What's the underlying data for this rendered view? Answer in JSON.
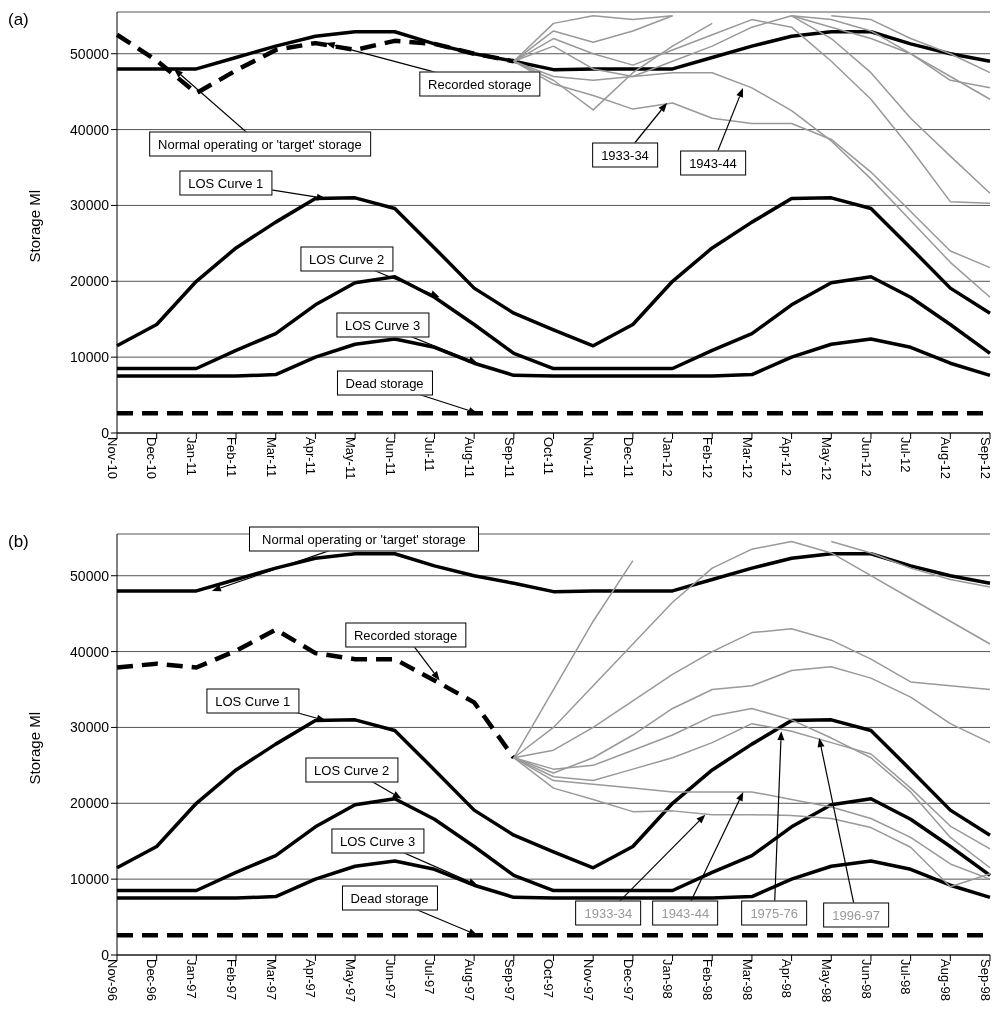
{
  "chart_data": [
    {
      "type": "line",
      "title": "(a)",
      "ylabel": "Storage Ml",
      "categories": [
        "Nov-10",
        "Dec-10",
        "Jan-11",
        "Feb-11",
        "Mar-11",
        "Apr-11",
        "May-11",
        "Jun-11",
        "Jul-11",
        "Aug-11",
        "Sep-11",
        "Oct-11",
        "Nov-11",
        "Dec-11",
        "Jan-12",
        "Feb-12",
        "Mar-12",
        "Apr-12",
        "May-12",
        "Jun-12",
        "Jul-12",
        "Aug-12",
        "Sep-12"
      ],
      "ylim": [
        0,
        55500
      ],
      "yticks": [
        0,
        10000,
        20000,
        30000,
        40000,
        50000
      ],
      "grid": "y",
      "legend": false,
      "marker": "none",
      "series": [
        {
          "name": "Normal operating or 'target' storage",
          "color": "#000000",
          "values": [
            48000,
            48000,
            48000,
            49500,
            51000,
            52300,
            52900,
            52900,
            51300,
            50000,
            49000,
            47900,
            48000,
            48000,
            48000,
            49500,
            51000,
            52300,
            52900,
            52900,
            51300,
            50000,
            49000
          ]
        },
        {
          "name": "Recorded storage",
          "color": "#000000",
          "line_style": "dashed",
          "values": [
            52500,
            49100,
            44800,
            47800,
            50500,
            51400,
            50500,
            51700,
            51300,
            50000,
            49000,
            null,
            null,
            null,
            null,
            null,
            null,
            null,
            null,
            null,
            null,
            null,
            null
          ]
        },
        {
          "name": "LOS Curve 1",
          "color": "#000000",
          "values": [
            11500,
            14300,
            20000,
            24400,
            27800,
            30900,
            31000,
            29600,
            24400,
            19100,
            15800,
            13600,
            11500,
            14300,
            20000,
            24400,
            27800,
            30900,
            31000,
            29600,
            24400,
            19100,
            15800
          ]
        },
        {
          "name": "LOS Curve 2",
          "color": "#000000",
          "values": [
            8500,
            8500,
            8500,
            10900,
            13100,
            16900,
            19800,
            20600,
            17900,
            14300,
            10500,
            8500,
            8500,
            8500,
            8500,
            10900,
            13100,
            16900,
            19800,
            20600,
            17900,
            14300,
            10500
          ]
        },
        {
          "name": "LOS Curve 3",
          "color": "#000000",
          "values": [
            7500,
            7500,
            7500,
            7500,
            7700,
            10000,
            11700,
            12400,
            11300,
            9200,
            7600,
            7500,
            7500,
            7500,
            7500,
            7500,
            7700,
            10000,
            11700,
            12400,
            11300,
            9200,
            7600
          ]
        },
        {
          "name": "Dead storage",
          "color": "#000000",
          "line_style": "dashed",
          "values": [
            2600,
            2600,
            2600,
            2600,
            2600,
            2600,
            2600,
            2600,
            2600,
            2600,
            2600,
            2600,
            2600,
            2600,
            2600,
            2600,
            2600,
            2600,
            2600,
            2600,
            2600,
            2600,
            2600
          ]
        },
        {
          "color": "#999999",
          "values": [
            null,
            null,
            null,
            null,
            null,
            null,
            null,
            null,
            null,
            null,
            49000,
            46000,
            44500,
            42700,
            43500,
            41500,
            40800,
            40800,
            38700,
            34400,
            29200,
            24000,
            21800
          ]
        },
        {
          "color": "#999999",
          "values": [
            null,
            null,
            null,
            null,
            null,
            null,
            null,
            null,
            null,
            null,
            49000,
            47000,
            46500,
            47000,
            47500,
            47500,
            45500,
            42500,
            38500,
            33500,
            28000,
            22500,
            17900
          ]
        },
        {
          "color": "#999999",
          "values": [
            null,
            null,
            null,
            null,
            null,
            null,
            null,
            null,
            null,
            null,
            49000,
            52000,
            50000,
            48500,
            50500,
            52500,
            54500,
            53500,
            49000,
            44000,
            37500,
            30500,
            30300
          ]
        },
        {
          "color": "#999999",
          "values": [
            null,
            null,
            null,
            null,
            null,
            null,
            null,
            null,
            null,
            null,
            49000,
            53000,
            51500,
            53000,
            55000,
            null,
            null,
            55000,
            52000,
            47500,
            41500,
            36500,
            31600
          ]
        },
        {
          "color": "#999999",
          "values": [
            null,
            null,
            null,
            null,
            null,
            null,
            null,
            null,
            null,
            null,
            49000,
            54000,
            55000,
            54500,
            55000,
            null,
            null,
            null,
            55000,
            54500,
            52000,
            50000,
            47500
          ]
        },
        {
          "color": "#999999",
          "values": [
            null,
            null,
            null,
            null,
            null,
            null,
            null,
            null,
            null,
            null,
            49000,
            51000,
            48000,
            47000,
            49000,
            51000,
            53500,
            55000,
            54500,
            53000,
            50000,
            46500,
            45500
          ]
        },
        {
          "color": "#999999",
          "values": [
            null,
            null,
            null,
            null,
            null,
            null,
            null,
            null,
            null,
            null,
            49000,
            46500,
            42600,
            47500,
            51000,
            54000,
            null,
            55000,
            53500,
            52000,
            50000,
            47000,
            44000
          ]
        }
      ],
      "annotations": [
        "1933-34",
        "1943-44"
      ]
    },
    {
      "type": "line",
      "title": "(b)",
      "ylabel": "Storage Ml",
      "categories": [
        "Nov-96",
        "Dec-96",
        "Jan-97",
        "Feb-97",
        "Mar-97",
        "Apr-97",
        "May-97",
        "Jun-97",
        "Jul-97",
        "Aug-97",
        "Sep-97",
        "Oct-97",
        "Nov-97",
        "Dec-97",
        "Jan-98",
        "Feb-98",
        "Mar-98",
        "Apr-98",
        "May-98",
        "Jun-98",
        "Jul-98",
        "Aug-98",
        "Sep-98"
      ],
      "ylim": [
        0,
        55500
      ],
      "yticks": [
        0,
        10000,
        20000,
        30000,
        40000,
        50000
      ],
      "grid": "y",
      "legend": false,
      "marker": "none",
      "series": [
        {
          "name": "Normal operating or 'target' storage",
          "color": "#000000",
          "values": [
            48000,
            48000,
            48000,
            49500,
            51000,
            52300,
            52900,
            52900,
            51300,
            50000,
            49000,
            47900,
            48000,
            48000,
            48000,
            49500,
            51000,
            52300,
            52900,
            52900,
            51300,
            50000,
            49000
          ]
        },
        {
          "name": "Recorded storage",
          "color": "#000000",
          "line_style": "dashed",
          "values": [
            37900,
            38400,
            37900,
            40100,
            42900,
            39800,
            39000,
            39000,
            36200,
            33300,
            26000,
            null,
            null,
            null,
            null,
            null,
            null,
            null,
            null,
            null,
            null,
            null,
            null
          ]
        },
        {
          "name": "LOS Curve 1",
          "color": "#000000",
          "values": [
            11500,
            14300,
            20000,
            24400,
            27800,
            30900,
            31000,
            29600,
            24400,
            19100,
            15800,
            13600,
            11500,
            14300,
            20000,
            24400,
            27800,
            30900,
            31000,
            29600,
            24400,
            19100,
            15800
          ]
        },
        {
          "name": "LOS Curve 2",
          "color": "#000000",
          "values": [
            8500,
            8500,
            8500,
            10900,
            13100,
            16900,
            19800,
            20600,
            17900,
            14300,
            10500,
            8500,
            8500,
            8500,
            8500,
            10900,
            13100,
            16900,
            19800,
            20600,
            17900,
            14300,
            10500
          ]
        },
        {
          "name": "LOS Curve 3",
          "color": "#000000",
          "values": [
            7500,
            7500,
            7500,
            7500,
            7700,
            10000,
            11700,
            12400,
            11300,
            9200,
            7600,
            7500,
            7500,
            7500,
            7500,
            7500,
            7700,
            10000,
            11700,
            12400,
            11300,
            9200,
            7600
          ]
        },
        {
          "name": "Dead storage",
          "color": "#000000",
          "line_style": "dashed",
          "values": [
            2600,
            2600,
            2600,
            2600,
            2600,
            2600,
            2600,
            2600,
            2600,
            2600,
            2600,
            2600,
            2600,
            2600,
            2600,
            2600,
            2600,
            2600,
            2600,
            2600,
            2600,
            2600,
            2600
          ]
        },
        {
          "name": "1933-34",
          "color": "#999999",
          "values": [
            null,
            null,
            null,
            null,
            null,
            null,
            null,
            null,
            null,
            null,
            26000,
            22000,
            20500,
            18900,
            19000,
            18500,
            18500,
            18400,
            18000,
            16800,
            14200,
            9000,
            10700
          ]
        },
        {
          "name": "1943-44",
          "color": "#999999",
          "values": [
            null,
            null,
            null,
            null,
            null,
            null,
            null,
            null,
            null,
            null,
            26000,
            23000,
            22500,
            22000,
            21500,
            21500,
            21500,
            20500,
            19500,
            18000,
            15500,
            12000,
            10000
          ]
        },
        {
          "name": "1975-76",
          "color": "#999999",
          "values": [
            null,
            null,
            null,
            null,
            null,
            null,
            null,
            null,
            null,
            null,
            26000,
            23500,
            23000,
            24500,
            26000,
            28000,
            30500,
            29500,
            28000,
            26500,
            22000,
            17000,
            14000
          ]
        },
        {
          "name": "1996-97",
          "color": "#999999",
          "values": [
            null,
            null,
            null,
            null,
            null,
            null,
            null,
            null,
            null,
            null,
            26000,
            24500,
            25000,
            27000,
            29000,
            31500,
            32500,
            31000,
            28600,
            26000,
            21500,
            15500,
            11500
          ]
        },
        {
          "color": "#999999",
          "values": [
            null,
            null,
            null,
            null,
            null,
            null,
            null,
            null,
            null,
            null,
            26000,
            35000,
            44000,
            52000,
            null,
            null,
            null,
            null,
            54500,
            53000,
            51000,
            49500,
            48500
          ]
        },
        {
          "color": "#999999",
          "values": [
            null,
            null,
            null,
            null,
            null,
            null,
            null,
            null,
            null,
            null,
            26000,
            30000,
            35500,
            41000,
            46500,
            51000,
            53500,
            54500,
            53000,
            50000,
            47000,
            44000,
            41000
          ]
        },
        {
          "color": "#999999",
          "values": [
            null,
            null,
            null,
            null,
            null,
            null,
            null,
            null,
            null,
            null,
            26000,
            27000,
            30000,
            33500,
            37000,
            40000,
            42500,
            43000,
            41500,
            39000,
            36000,
            35500,
            35000
          ]
        },
        {
          "color": "#999999",
          "values": [
            null,
            null,
            null,
            null,
            null,
            null,
            null,
            null,
            null,
            null,
            26000,
            24000,
            26000,
            29000,
            32500,
            35000,
            35500,
            37500,
            38000,
            36500,
            34000,
            30500,
            28000
          ]
        }
      ]
    }
  ]
}
